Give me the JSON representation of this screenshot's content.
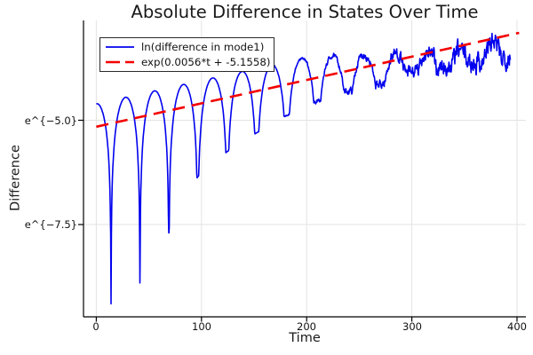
{
  "figure": {
    "title": "Absolute Difference in States Over Time",
    "xlabel": "Time",
    "ylabel": "Difference"
  },
  "legend": {
    "items": [
      {
        "label": "ln(difference in mode1)",
        "color": "#0202ee",
        "style": "solid"
      },
      {
        "label": "exp(0.0056*t + -5.1558)",
        "color": "#f40000",
        "style": "dashed"
      }
    ]
  },
  "chart_data": {
    "type": "line",
    "title": "Absolute Difference in States Over Time",
    "xlabel": "Time",
    "ylabel": "Difference",
    "x_ticks": [
      {
        "value": 0,
        "label": "0"
      },
      {
        "value": 100,
        "label": "100"
      },
      {
        "value": 200,
        "label": "200"
      },
      {
        "value": 300,
        "label": "300"
      },
      {
        "value": 400,
        "label": "400"
      }
    ],
    "y_ticks": [
      {
        "ln": -5.0,
        "label": "e^{−5.0}"
      },
      {
        "ln": -7.5,
        "label": "e^{−7.5}"
      }
    ],
    "xlim": [
      -12,
      408
    ],
    "ylim_ln": [
      -9.72,
      -2.6
    ],
    "grid": true,
    "grid_color": "#e3e3e3",
    "axis_color": "#000000",
    "text_color": "#191919",
    "legend_position": "top-left",
    "series": [
      {
        "name": "ln(difference in mode1)",
        "color": "#0202ee",
        "style": "solid",
        "width": 1.6,
        "model": {
          "description": "ln of |state difference|: ln|sin| arches riding the exponential fit line; sharp dips every ~27.5-30 time units whose depth shrinks over time; increasingly noisy after t≈200",
          "trend_slope": 0.0056,
          "trend_intercept": -5.1558,
          "peak_offset_early": 0.55,
          "peak_offset_late": -0.1,
          "offset_ramp_t": [
            200,
            345
          ],
          "t_start": 0,
          "t_end": 394,
          "dips": [
            {
              "t": 14,
              "ln_min": -9.4
            },
            {
              "t": 41.5,
              "ln_min": -8.9
            },
            {
              "t": 69,
              "ln_min": -7.7
            },
            {
              "t": 96.5,
              "ln_min": -6.35
            },
            {
              "t": 124.5,
              "ln_min": -5.75
            },
            {
              "t": 152.5,
              "ln_min": -5.3
            },
            {
              "t": 181,
              "ln_min": -4.9
            },
            {
              "t": 210,
              "ln_min": -4.55
            },
            {
              "t": 239.5,
              "ln_min": -4.3
            },
            {
              "t": 269.5,
              "ln_min": -4.15
            },
            {
              "t": 300,
              "ln_min": -3.85
            },
            {
              "t": 330.5,
              "ln_min": -3.75
            },
            {
              "t": 361,
              "ln_min": -3.6
            },
            {
              "t": 391.5,
              "ln_min": -3.45
            }
          ],
          "virtual_first_dip_t": -13.6,
          "virtual_last_dip_t": 422,
          "noise": {
            "seed": 7,
            "smoothing": 0.55,
            "gain": 1.8,
            "amp_breakpoints": [
              [
                158,
                0
              ],
              [
                230,
                0.06
              ],
              [
                335,
                0.22
              ],
              [
                394,
                0.28
              ]
            ]
          }
        }
      },
      {
        "name": "exp(0.0056*t + -5.1558)",
        "color": "#f40000",
        "style": "dashed",
        "width": 2.6,
        "slope": 0.0056,
        "intercept": -5.1558,
        "t_start": 0,
        "t_end": 402
      }
    ]
  }
}
